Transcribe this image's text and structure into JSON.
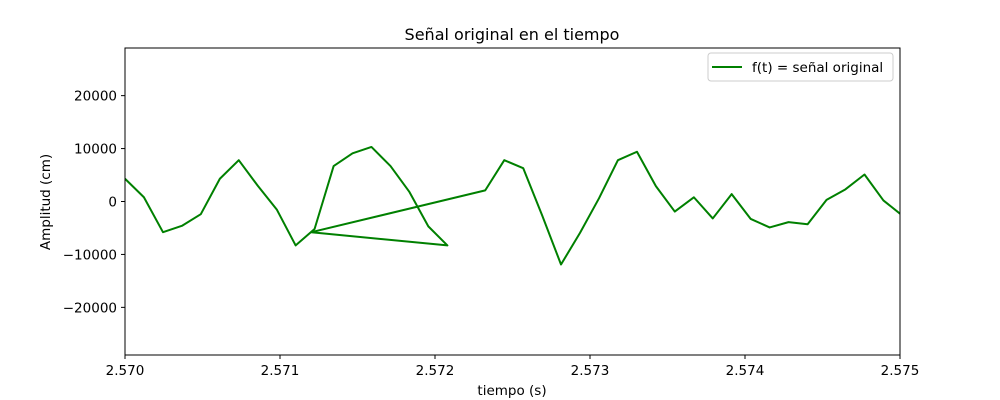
{
  "chart_data": {
    "type": "line",
    "title": "Señal original en el tiempo",
    "xlabel": "tiempo (s)",
    "ylabel": "Amplitud (cm)",
    "xlim": [
      2.57,
      2.575
    ],
    "ylim": [
      -29000,
      29000
    ],
    "xticks": [
      2.57,
      2.571,
      2.572,
      2.573,
      2.574,
      2.575
    ],
    "xtick_labels": [
      "2.570",
      "2.571",
      "2.572",
      "2.573",
      "2.574",
      "2.575"
    ],
    "yticks": [
      -20000,
      -10000,
      0,
      10000,
      20000
    ],
    "ytick_labels": [
      "−20000",
      "−10000",
      "0",
      "10000",
      "20000"
    ],
    "grid": false,
    "legend_position": "top-right",
    "series": [
      {
        "name": "f(t) = señal original",
        "color": "#008000",
        "x": [
          2.57,
          2.570122,
          2.570245,
          2.570367,
          2.570489,
          2.570612,
          2.570734,
          2.570856,
          2.570979,
          2.571101,
          2.571223,
          2.571346,
          2.571468,
          2.57159,
          2.571713,
          2.571835,
          2.571957,
          2.57208,
          2.571202,
          2.572324,
          2.572447,
          2.572569,
          2.572691,
          2.572813,
          2.572936,
          2.573058,
          2.57318,
          2.573303,
          2.573425,
          2.573547,
          2.57367,
          2.573792,
          2.573914,
          2.574037,
          2.574159,
          2.574281,
          2.574404,
          2.574526,
          2.574648,
          2.574771,
          2.574893,
          2.575
        ],
        "y": [
          4300,
          800,
          -5800,
          -4600,
          -2400,
          4300,
          7800,
          3000,
          -1500,
          -8300,
          -5200,
          6700,
          9100,
          10300,
          6700,
          1800,
          -4700,
          -8300,
          -5800,
          2100,
          7800,
          6300,
          -2600,
          -11900,
          -5900,
          600,
          7800,
          9400,
          2900,
          -1900,
          800,
          -3200,
          1400,
          -3300,
          -4900,
          -3900,
          -4300,
          300,
          2300,
          5100,
          200,
          -2300
        ]
      }
    ]
  }
}
